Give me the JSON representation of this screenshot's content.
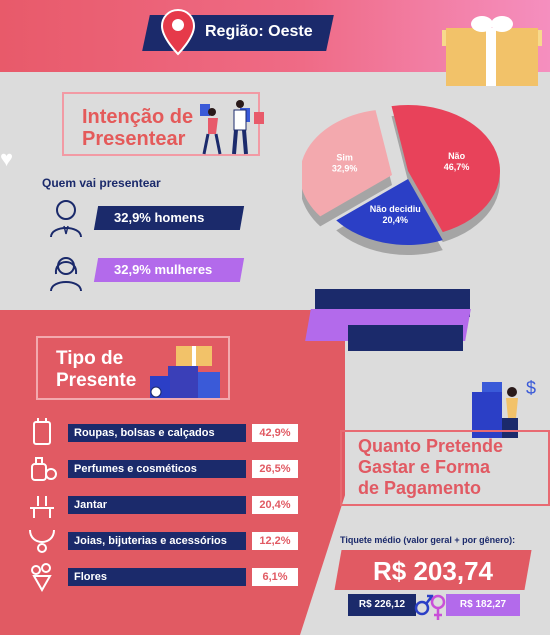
{
  "header": {
    "region": "Região: Oeste"
  },
  "intent": {
    "title_line1": "Intenção de",
    "title_line2": "Presentear",
    "who_label": "Quem vai presentear",
    "men": "32,9% homens",
    "women": "32,9% mulheres"
  },
  "chart_data": {
    "type": "pie",
    "slices": [
      {
        "label": "Não",
        "value": 46.7,
        "display": "46,7%",
        "color": "#e8425a"
      },
      {
        "label": "Não decidiu",
        "value": 20.4,
        "display": "20,4%",
        "color": "#2b3fc6"
      },
      {
        "label": "Sim",
        "value": 32.9,
        "display": "32,9%",
        "color": "#f3a9ae"
      }
    ]
  },
  "gift_type": {
    "title_line1": "Tipo de",
    "title_line2": "Presente",
    "categories": [
      {
        "label": "Roupas, bolsas e calçados",
        "pct": "42,9%",
        "icon": "dress-icon"
      },
      {
        "label": "Perfumes e cosméticos",
        "pct": "26,5%",
        "icon": "perfume-icon"
      },
      {
        "label": "Jantar",
        "pct": "20,4%",
        "icon": "dinner-icon"
      },
      {
        "label": "Joias, bijuterias e acessórios",
        "pct": "12,2%",
        "icon": "necklace-icon"
      },
      {
        "label": "Flores",
        "pct": "6,1%",
        "icon": "flowers-icon"
      }
    ]
  },
  "spending": {
    "title_line1": "Quanto Pretende",
    "title_line2": "Gastar e Forma",
    "title_line3": "de Pagamento",
    "ticket_label": "Tiquete médio (valor geral + por gênero):",
    "ticket_value": "R$ 203,74",
    "male_value": "R$ 226,12",
    "female_value": "R$ 182,27"
  },
  "colors": {
    "navy": "#1b2a6b",
    "coral": "#e15a63",
    "purple": "#b36aeb",
    "gray": "#dcdcdc"
  }
}
